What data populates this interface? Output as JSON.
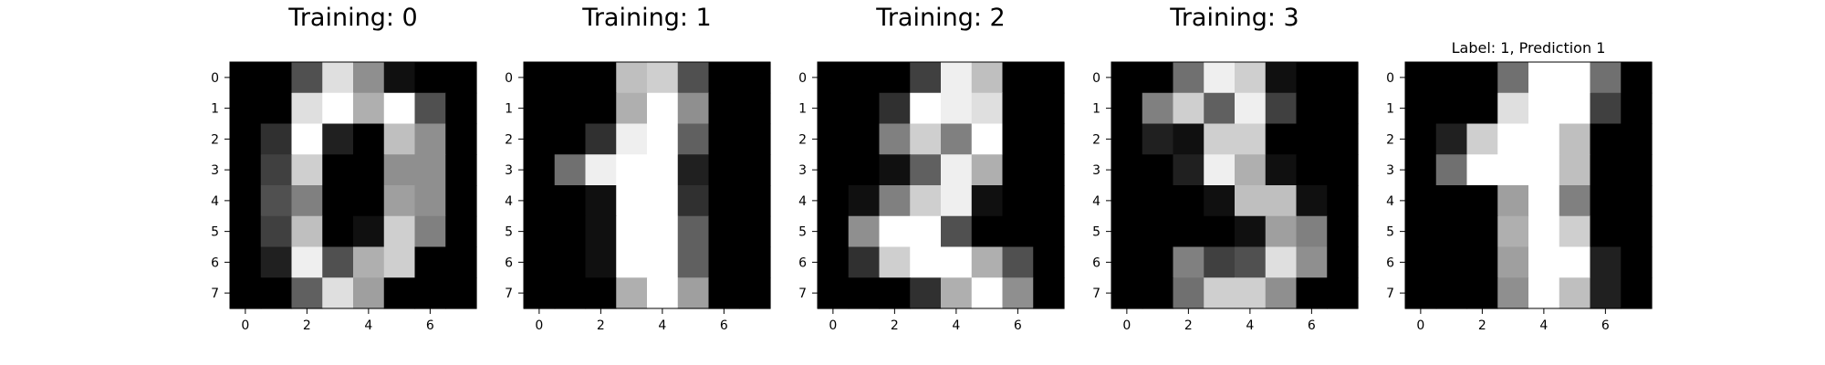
{
  "chart_data": [
    {
      "type": "heatmap",
      "title": "Training: 0",
      "xticks": [
        0,
        2,
        4,
        6
      ],
      "yticks": [
        0,
        1,
        2,
        3,
        4,
        5,
        6,
        7
      ],
      "colormap": "gray",
      "value_range": [
        0,
        16
      ],
      "values": [
        [
          0,
          0,
          5,
          14,
          9,
          1,
          0,
          0
        ],
        [
          0,
          0,
          14,
          16,
          11,
          16,
          5,
          0
        ],
        [
          0,
          3,
          16,
          2,
          0,
          12,
          9,
          0
        ],
        [
          0,
          4,
          13,
          0,
          0,
          9,
          9,
          0
        ],
        [
          0,
          5,
          8,
          0,
          0,
          10,
          9,
          0
        ],
        [
          0,
          4,
          12,
          0,
          1,
          13,
          8,
          0
        ],
        [
          0,
          2,
          15,
          5,
          11,
          13,
          0,
          0
        ],
        [
          0,
          0,
          6,
          14,
          10,
          0,
          0,
          0
        ]
      ]
    },
    {
      "type": "heatmap",
      "title": "Training: 1",
      "xticks": [
        0,
        2,
        4,
        6
      ],
      "yticks": [
        0,
        1,
        2,
        3,
        4,
        5,
        6,
        7
      ],
      "colormap": "gray",
      "value_range": [
        0,
        16
      ],
      "values": [
        [
          0,
          0,
          0,
          12,
          13,
          5,
          0,
          0
        ],
        [
          0,
          0,
          0,
          11,
          16,
          9,
          0,
          0
        ],
        [
          0,
          0,
          3,
          15,
          16,
          6,
          0,
          0
        ],
        [
          0,
          7,
          15,
          16,
          16,
          2,
          0,
          0
        ],
        [
          0,
          0,
          1,
          16,
          16,
          3,
          0,
          0
        ],
        [
          0,
          0,
          1,
          16,
          16,
          6,
          0,
          0
        ],
        [
          0,
          0,
          1,
          16,
          16,
          6,
          0,
          0
        ],
        [
          0,
          0,
          0,
          11,
          16,
          10,
          0,
          0
        ]
      ]
    },
    {
      "type": "heatmap",
      "title": "Training: 2",
      "xticks": [
        0,
        2,
        4,
        6
      ],
      "yticks": [
        0,
        1,
        2,
        3,
        4,
        5,
        6,
        7
      ],
      "colormap": "gray",
      "value_range": [
        0,
        16
      ],
      "values": [
        [
          0,
          0,
          0,
          4,
          15,
          12,
          0,
          0
        ],
        [
          0,
          0,
          3,
          16,
          15,
          14,
          0,
          0
        ],
        [
          0,
          0,
          8,
          13,
          8,
          16,
          0,
          0
        ],
        [
          0,
          0,
          1,
          6,
          15,
          11,
          0,
          0
        ],
        [
          0,
          1,
          8,
          13,
          15,
          1,
          0,
          0
        ],
        [
          0,
          9,
          16,
          16,
          5,
          0,
          0,
          0
        ],
        [
          0,
          3,
          13,
          16,
          16,
          11,
          5,
          0
        ],
        [
          0,
          0,
          0,
          3,
          11,
          16,
          9,
          0
        ]
      ]
    },
    {
      "type": "heatmap",
      "title": "Training: 3",
      "xticks": [
        0,
        2,
        4,
        6
      ],
      "yticks": [
        0,
        1,
        2,
        3,
        4,
        5,
        6,
        7
      ],
      "colormap": "gray",
      "value_range": [
        0,
        16
      ],
      "values": [
        [
          0,
          0,
          7,
          15,
          13,
          1,
          0,
          0
        ],
        [
          0,
          8,
          13,
          6,
          15,
          4,
          0,
          0
        ],
        [
          0,
          2,
          1,
          13,
          13,
          0,
          0,
          0
        ],
        [
          0,
          0,
          2,
          15,
          11,
          1,
          0,
          0
        ],
        [
          0,
          0,
          0,
          1,
          12,
          12,
          1,
          0
        ],
        [
          0,
          0,
          0,
          0,
          1,
          10,
          8,
          0
        ],
        [
          0,
          0,
          8,
          4,
          5,
          14,
          9,
          0
        ],
        [
          0,
          0,
          7,
          13,
          13,
          9,
          0,
          0
        ]
      ]
    },
    {
      "type": "heatmap",
      "title": "Label: 1, Prediction 1",
      "xticks": [
        0,
        2,
        4,
        6
      ],
      "yticks": [
        0,
        1,
        2,
        3,
        4,
        5,
        6,
        7
      ],
      "colormap": "gray",
      "value_range": [
        0,
        16
      ],
      "values": [
        [
          0,
          0,
          0,
          7,
          16,
          16,
          7,
          0
        ],
        [
          0,
          0,
          0,
          14,
          16,
          16,
          4,
          0
        ],
        [
          0,
          2,
          13,
          16,
          16,
          12,
          0,
          0
        ],
        [
          0,
          7,
          16,
          16,
          16,
          12,
          0,
          0
        ],
        [
          0,
          0,
          0,
          10,
          16,
          8,
          0,
          0
        ],
        [
          0,
          0,
          0,
          11,
          16,
          13,
          0,
          0
        ],
        [
          0,
          0,
          0,
          10,
          16,
          16,
          2,
          0
        ],
        [
          0,
          0,
          0,
          9,
          16,
          12,
          2,
          0
        ]
      ]
    }
  ]
}
